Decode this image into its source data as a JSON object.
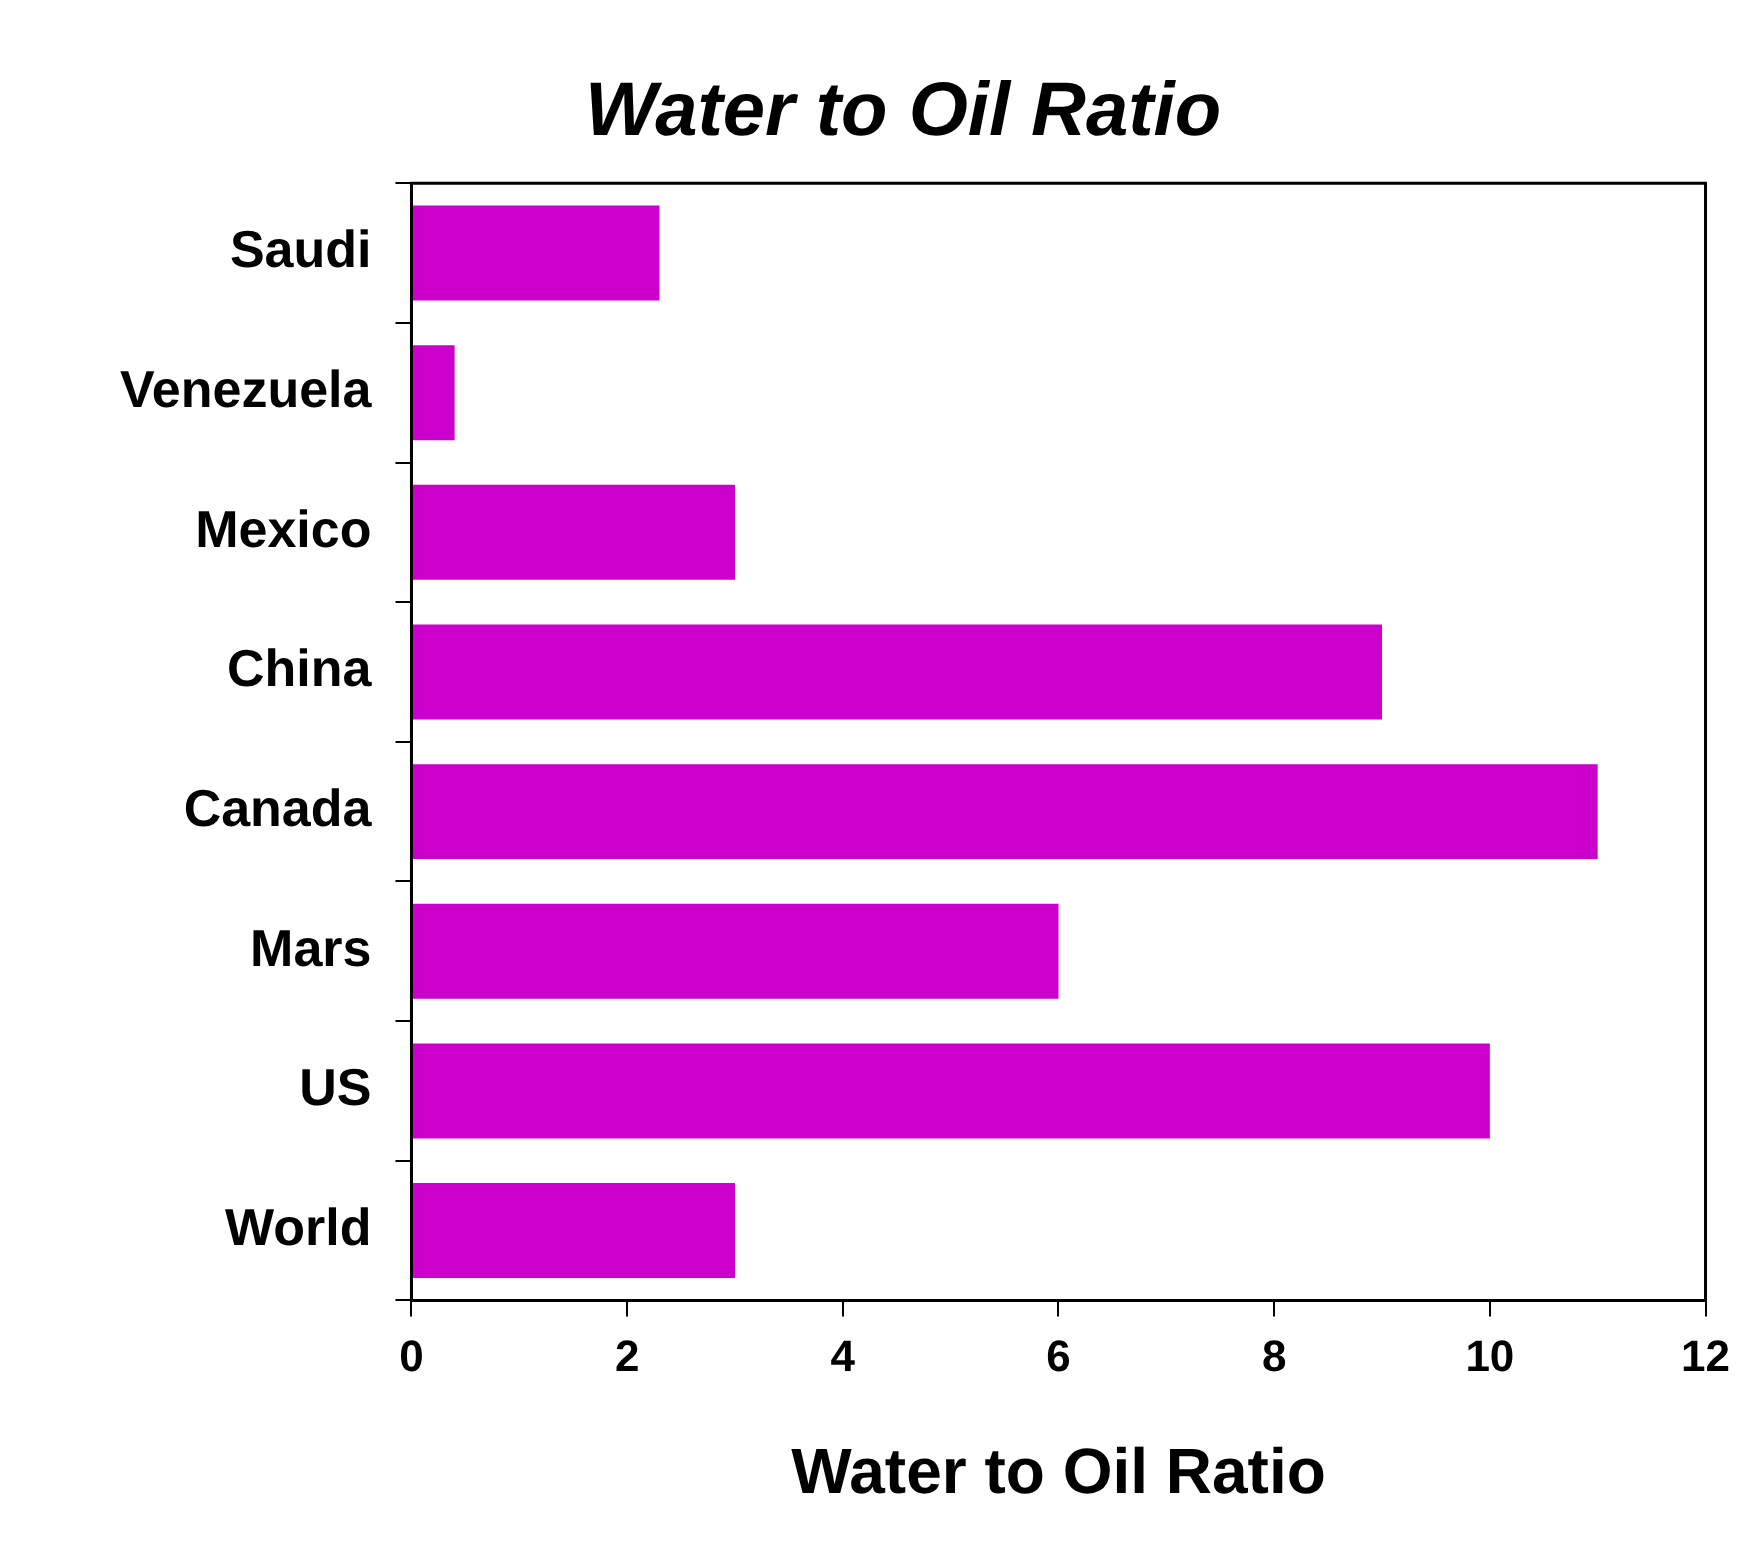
{
  "chart_data": {
    "type": "bar",
    "orientation": "horizontal",
    "title": "Water to Oil Ratio",
    "xlabel": "Water to Oil Ratio",
    "categories": [
      "Saudi",
      "Venezuela",
      "Mexico",
      "China",
      "Canada",
      "Mars",
      "US",
      "World"
    ],
    "values": [
      2.3,
      0.4,
      3,
      9,
      11,
      6,
      10,
      3
    ],
    "color": "#cc00cc",
    "xlim": [
      0,
      12
    ],
    "xticks": [
      0,
      2,
      4,
      6,
      8,
      10,
      12
    ],
    "grid": false,
    "legend": false
  }
}
